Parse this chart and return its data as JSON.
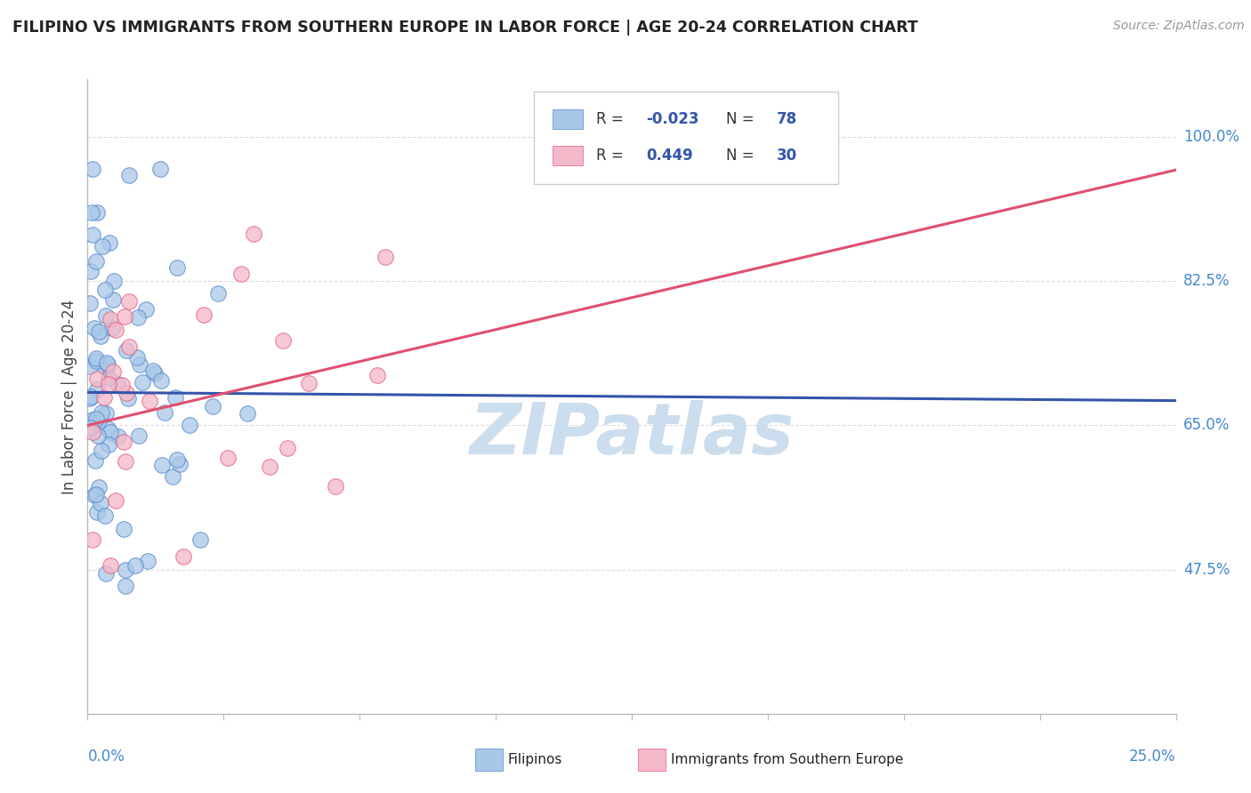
{
  "title": "FILIPINO VS IMMIGRANTS FROM SOUTHERN EUROPE IN LABOR FORCE | AGE 20-24 CORRELATION CHART",
  "source": "Source: ZipAtlas.com",
  "ylabel": "In Labor Force | Age 20-24",
  "y_ticks": [
    47.5,
    65.0,
    82.5,
    100.0
  ],
  "y_tick_labels": [
    "47.5%",
    "65.0%",
    "82.5%",
    "100.0%"
  ],
  "xlim": [
    0.0,
    25.0
  ],
  "ylim": [
    30.0,
    107.0
  ],
  "blue_R": "-0.023",
  "blue_N": "78",
  "pink_R": "0.449",
  "pink_N": "30",
  "blue_color": "#A8C8E8",
  "pink_color": "#F5B8C8",
  "blue_edge_color": "#5588CC",
  "pink_edge_color": "#E06080",
  "blue_line_color": "#3355AA",
  "pink_line_color": "#E05070",
  "watermark": "ZIPatlas",
  "watermark_color": "#CCDDED",
  "legend_label_blue": "Filipinos",
  "legend_label_pink": "Immigrants from Southern Europe",
  "blue_trend_y0": 69.0,
  "blue_trend_y1": 68.0,
  "pink_trend_y0": 65.0,
  "pink_trend_y1": 96.0,
  "grid_color": "#DDDDDD",
  "axis_color": "#BBBBBB",
  "right_label_color": "#4488CC",
  "bottom_label_color": "#4488CC",
  "title_color": "#222222",
  "source_color": "#999999",
  "ylabel_color": "#444444"
}
